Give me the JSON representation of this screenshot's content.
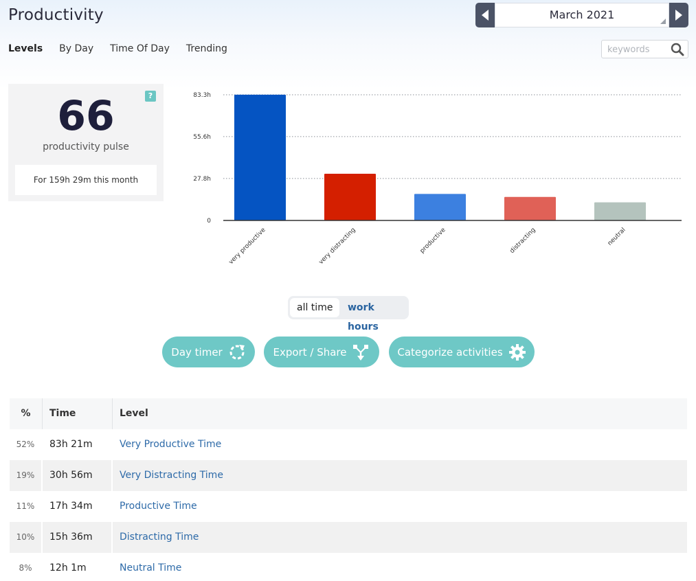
{
  "page": {
    "title": "Productivity"
  },
  "month_nav": {
    "current": "March 2021"
  },
  "tabs": [
    "Levels",
    "By Day",
    "Time Of Day",
    "Trending"
  ],
  "search": {
    "placeholder": "keywords",
    "value": ""
  },
  "pulse": {
    "help": "?",
    "value": "66",
    "label": "productivity pulse",
    "subtitle": "For 159h 29m this month"
  },
  "chart_data": {
    "type": "bar",
    "categories": [
      "very productive",
      "very distracting",
      "productive",
      "distracting",
      "neutral"
    ],
    "values": [
      83.35,
      30.93,
      17.57,
      15.6,
      12.02
    ],
    "colors": [
      "#0554c2",
      "#d41f00",
      "#3c80e0",
      "#e06157",
      "#b4c3bd"
    ],
    "y_ticks": [
      {
        "value": 0,
        "label": "0"
      },
      {
        "value": 27.8,
        "label": "27.8h"
      },
      {
        "value": 55.6,
        "label": "55.6h"
      },
      {
        "value": 83.3,
        "label": "83.3h"
      }
    ],
    "ylim": [
      0,
      83.3
    ],
    "grid": "dotted horizontal",
    "title": "",
    "xlabel": "",
    "ylabel": ""
  },
  "toggle": {
    "active": "all time",
    "inactive": "work hours"
  },
  "actions": {
    "day_timer": "Day timer",
    "export_share": "Export / Share",
    "categorize": "Categorize activities"
  },
  "table": {
    "headers": {
      "pct": "%",
      "time": "Time",
      "level": "Level"
    },
    "rows": [
      {
        "pct": "52%",
        "time": "83h 21m",
        "level": "Very Productive Time"
      },
      {
        "pct": "19%",
        "time": "30h 56m",
        "level": "Very Distracting Time"
      },
      {
        "pct": "11%",
        "time": "17h 34m",
        "level": "Productive Time"
      },
      {
        "pct": "10%",
        "time": "15h 36m",
        "level": "Distracting Time"
      },
      {
        "pct": "8%",
        "time": "12h 1m",
        "level": "Neutral Time"
      }
    ]
  },
  "colors": {
    "accent": "#6ec8c6",
    "link": "#2d6aa8",
    "nav_button": "#4b5366"
  },
  "icons": [
    "chevron-left-icon",
    "chevron-right-icon",
    "search-icon",
    "refresh-icon",
    "share-icon",
    "gear-icon"
  ]
}
